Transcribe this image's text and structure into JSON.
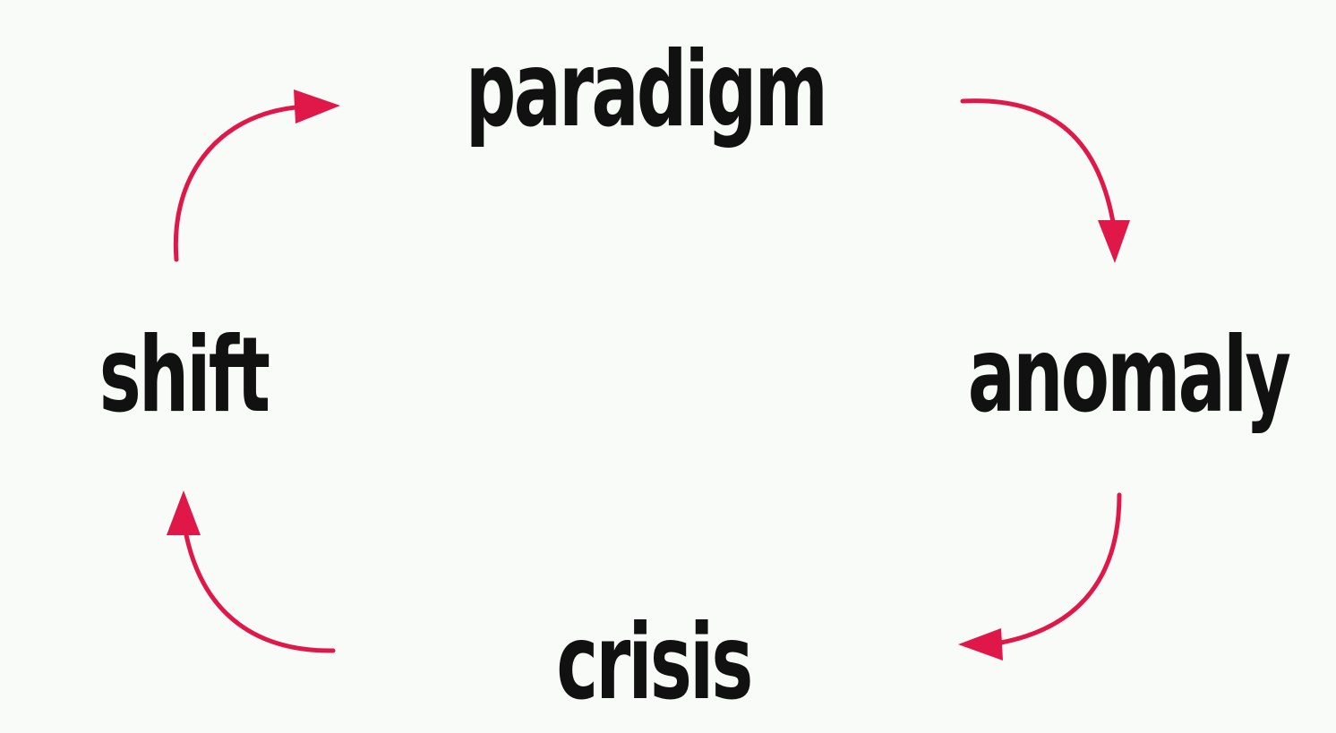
{
  "diagram": {
    "nodes": {
      "paradigm": "paradigm",
      "anomaly": "anomaly",
      "crisis": "crisis",
      "shift": "shift"
    },
    "colors": {
      "background": "#f8fbf7",
      "text": "#111111",
      "arrow": "#e0184a"
    },
    "edges": [
      {
        "from": "paradigm",
        "to": "anomaly"
      },
      {
        "from": "anomaly",
        "to": "crisis"
      },
      {
        "from": "crisis",
        "to": "shift"
      },
      {
        "from": "shift",
        "to": "paradigm"
      }
    ]
  }
}
